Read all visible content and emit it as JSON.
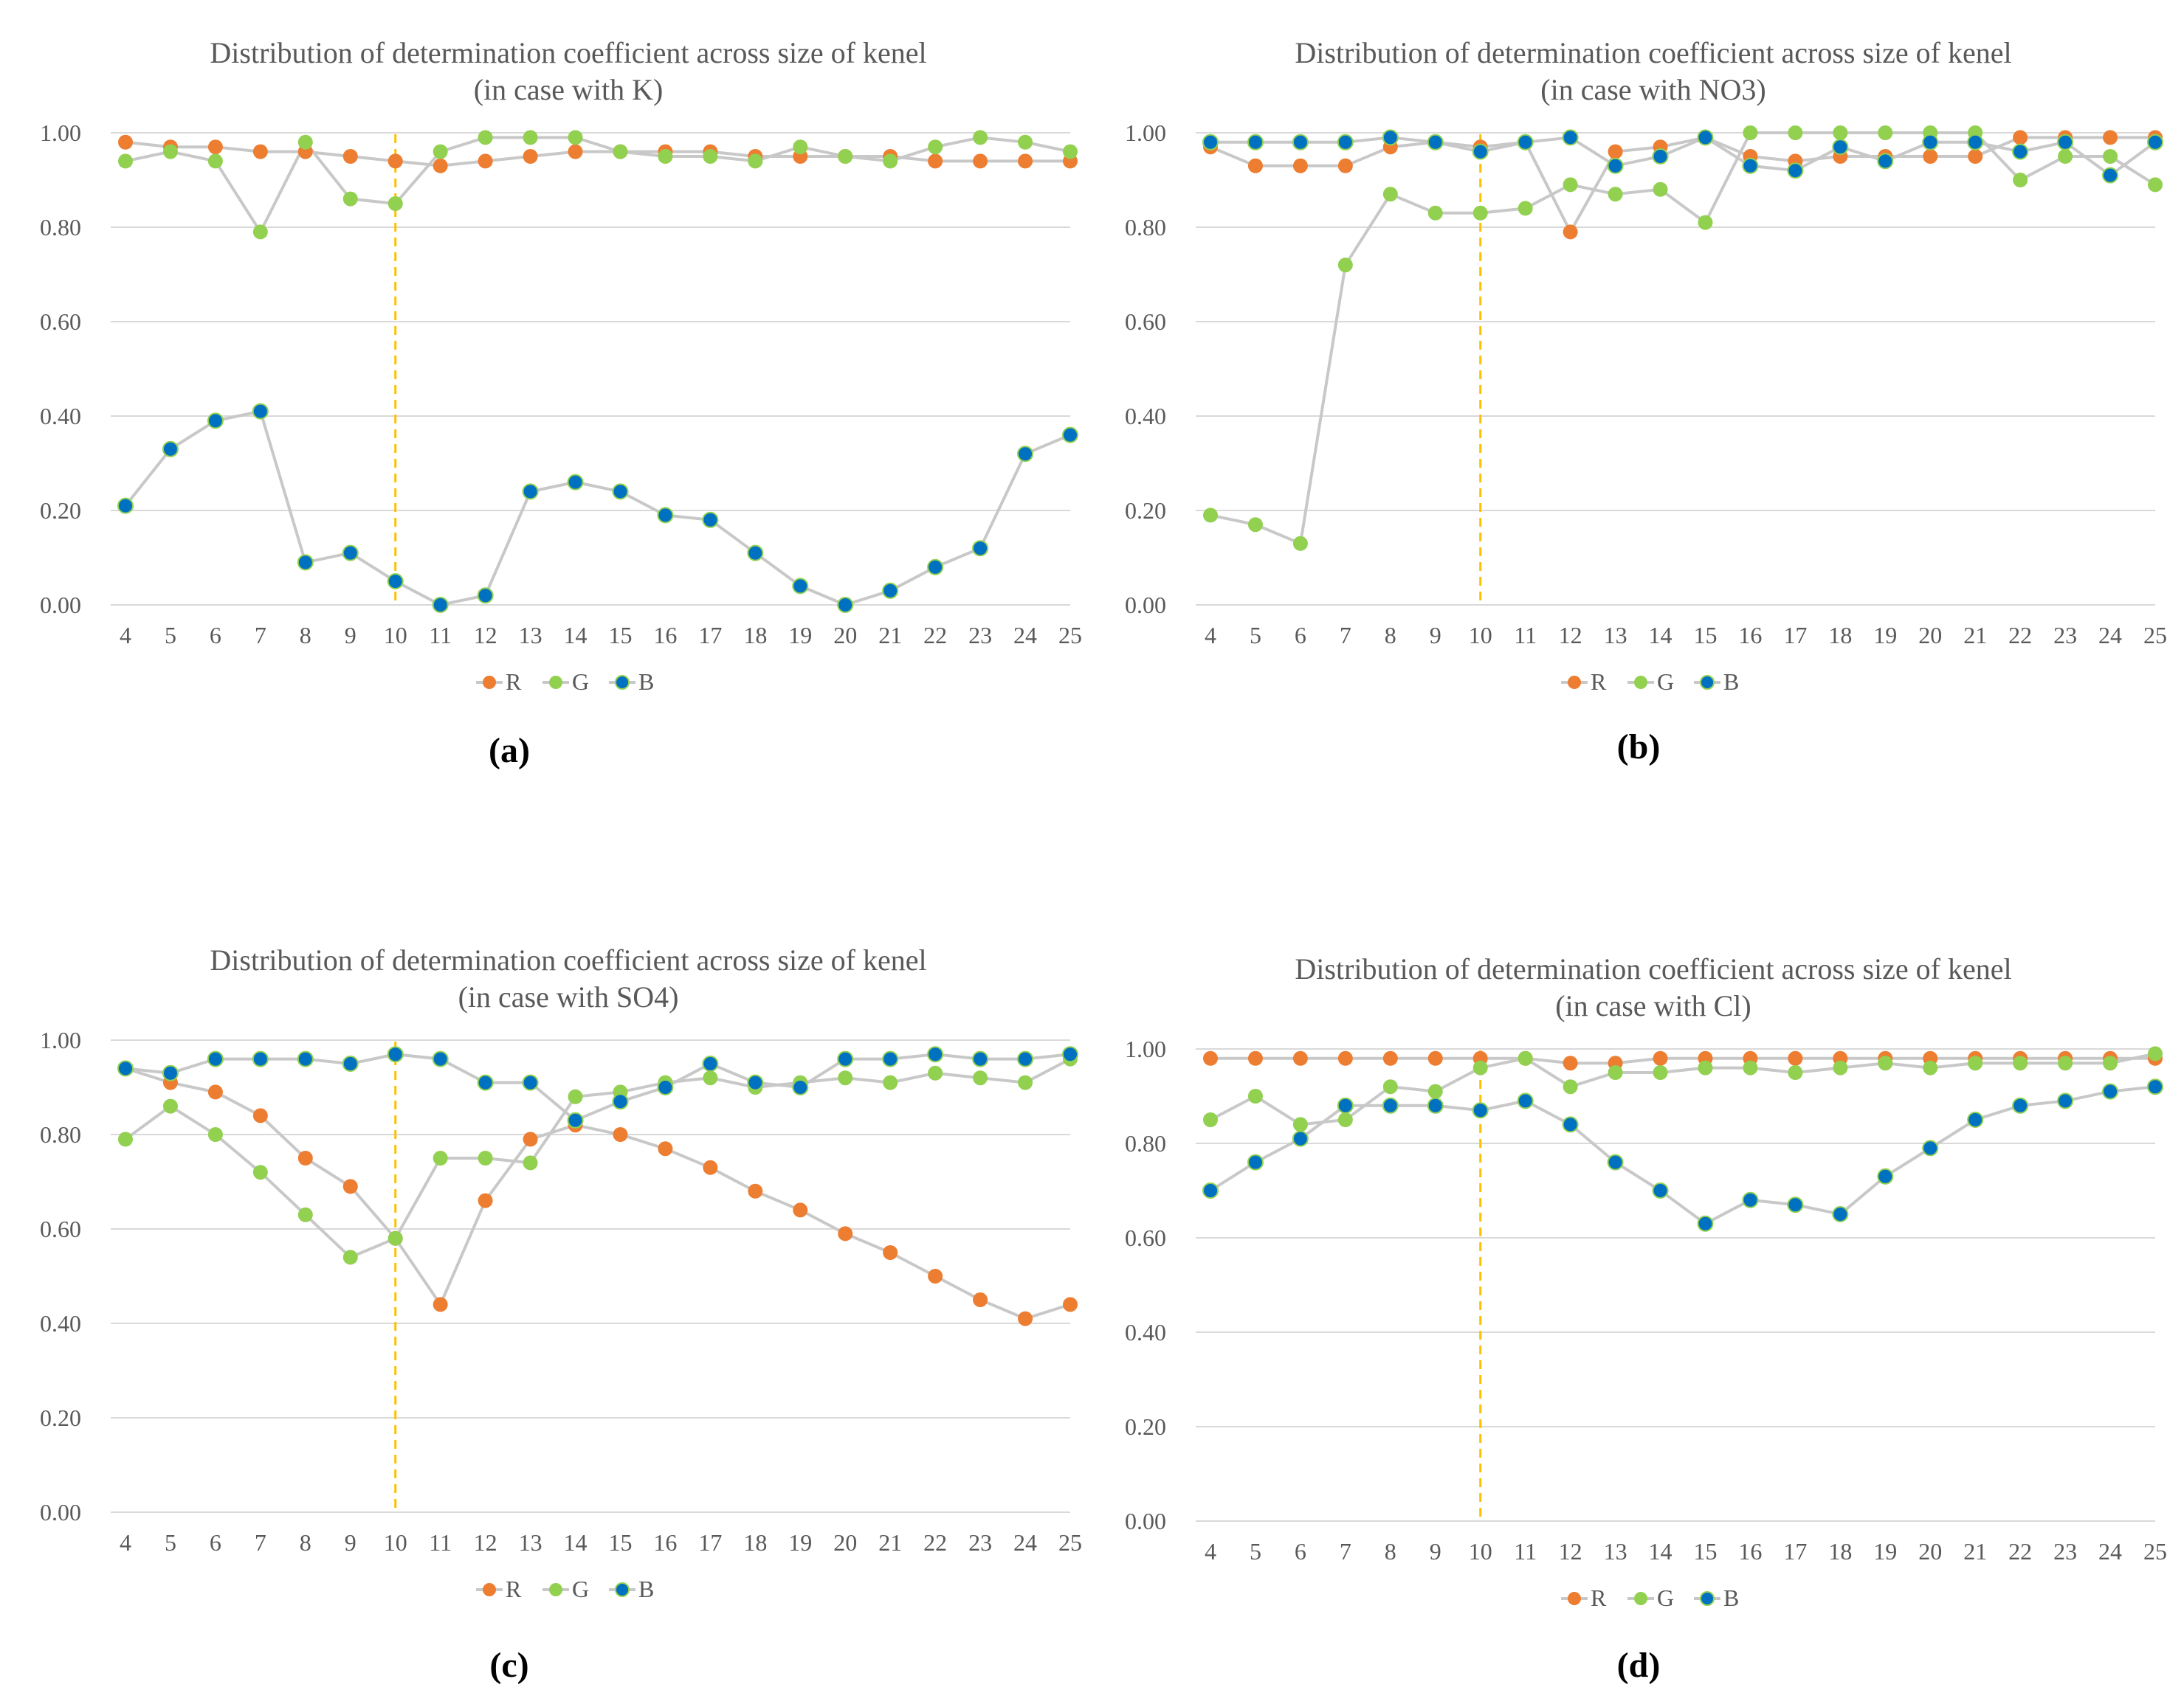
{
  "colors": {
    "R": "#ED7D31",
    "G": "#92D050",
    "B": "#0070C0",
    "line": "#C8C8C8",
    "grid": "#D9D9D9",
    "marker_line": "#FFC000"
  },
  "chart_data": [
    {
      "type": "line",
      "id": "a",
      "panel_label": "(a)",
      "title": "Distribution of determination coefficient across size of kenel",
      "subtitle": "(in case with K)",
      "xlabel": "",
      "ylabel": "",
      "categories": [
        "4",
        "5",
        "6",
        "7",
        "8",
        "9",
        "10",
        "11",
        "12",
        "13",
        "14",
        "15",
        "16",
        "17",
        "18",
        "19",
        "20",
        "21",
        "22",
        "23",
        "24",
        "25"
      ],
      "ylim": [
        0,
        1
      ],
      "yticks": [
        "0.00",
        "0.20",
        "0.40",
        "0.60",
        "0.80",
        "1.00"
      ],
      "reference_x": "10",
      "legend": [
        "R",
        "G",
        "B"
      ],
      "series": [
        {
          "name": "R",
          "values": [
            0.98,
            0.97,
            0.97,
            0.96,
            0.96,
            0.95,
            0.94,
            0.93,
            0.94,
            0.95,
            0.96,
            0.96,
            0.96,
            0.96,
            0.95,
            0.95,
            0.95,
            0.95,
            0.94,
            0.94,
            0.94,
            0.94
          ]
        },
        {
          "name": "G",
          "values": [
            0.94,
            0.96,
            0.94,
            0.79,
            0.98,
            0.86,
            0.85,
            0.96,
            0.99,
            0.99,
            0.99,
            0.96,
            0.95,
            0.95,
            0.94,
            0.97,
            0.95,
            0.94,
            0.97,
            0.99,
            0.98,
            0.96
          ]
        },
        {
          "name": "B",
          "values": [
            0.21,
            0.33,
            0.39,
            0.41,
            0.09,
            0.11,
            0.05,
            0.0,
            0.02,
            0.24,
            0.26,
            0.24,
            0.19,
            0.18,
            0.11,
            0.04,
            0.0,
            0.03,
            0.08,
            0.12,
            0.32,
            0.36
          ]
        }
      ]
    },
    {
      "type": "line",
      "id": "b",
      "panel_label": "(b)",
      "title": "Distribution of determination coefficient across size of kenel",
      "subtitle": "(in case with NO3)",
      "xlabel": "",
      "ylabel": "",
      "categories": [
        "4",
        "5",
        "6",
        "7",
        "8",
        "9",
        "10",
        "11",
        "12",
        "13",
        "14",
        "15",
        "16",
        "17",
        "18",
        "19",
        "20",
        "21",
        "22",
        "23",
        "24",
        "25"
      ],
      "ylim": [
        0,
        1
      ],
      "yticks": [
        "0.00",
        "0.20",
        "0.40",
        "0.60",
        "0.80",
        "1.00"
      ],
      "reference_x": "10",
      "legend": [
        "R",
        "G",
        "B"
      ],
      "series": [
        {
          "name": "R",
          "values": [
            0.97,
            0.93,
            0.93,
            0.93,
            0.97,
            0.98,
            0.97,
            0.98,
            0.79,
            0.96,
            0.97,
            0.99,
            0.95,
            0.94,
            0.95,
            0.95,
            0.95,
            0.95,
            0.99,
            0.99,
            0.99,
            0.99
          ]
        },
        {
          "name": "G",
          "values": [
            0.19,
            0.17,
            0.13,
            0.72,
            0.87,
            0.83,
            0.83,
            0.84,
            0.89,
            0.87,
            0.88,
            0.81,
            1.0,
            1.0,
            1.0,
            1.0,
            1.0,
            1.0,
            0.9,
            0.95,
            0.95,
            0.89
          ]
        },
        {
          "name": "B",
          "values": [
            0.98,
            0.98,
            0.98,
            0.98,
            0.99,
            0.98,
            0.96,
            0.98,
            0.99,
            0.93,
            0.95,
            0.99,
            0.93,
            0.92,
            0.97,
            0.94,
            0.98,
            0.98,
            0.96,
            0.98,
            0.91,
            0.98
          ]
        }
      ]
    },
    {
      "type": "line",
      "id": "c",
      "panel_label": "(c)",
      "title": "Distribution of determination coefficient across size of kenel",
      "subtitle": "(in case with SO4)",
      "xlabel": "",
      "ylabel": "",
      "categories": [
        "4",
        "5",
        "6",
        "7",
        "8",
        "9",
        "10",
        "11",
        "12",
        "13",
        "14",
        "15",
        "16",
        "17",
        "18",
        "19",
        "20",
        "21",
        "22",
        "23",
        "24",
        "25"
      ],
      "ylim": [
        0,
        1
      ],
      "yticks": [
        "0.00",
        "0.20",
        "0.40",
        "0.60",
        "0.80",
        "1.00"
      ],
      "reference_x": "10",
      "legend": [
        "R",
        "G",
        "B"
      ],
      "series": [
        {
          "name": "R",
          "values": [
            0.94,
            0.91,
            0.89,
            0.84,
            0.75,
            0.69,
            0.58,
            0.44,
            0.66,
            0.79,
            0.82,
            0.8,
            0.77,
            0.73,
            0.68,
            0.64,
            0.59,
            0.55,
            0.5,
            0.45,
            0.41,
            0.44
          ]
        },
        {
          "name": "G",
          "values": [
            0.79,
            0.86,
            0.8,
            0.72,
            0.63,
            0.54,
            0.58,
            0.75,
            0.75,
            0.74,
            0.88,
            0.89,
            0.91,
            0.92,
            0.9,
            0.91,
            0.92,
            0.91,
            0.93,
            0.92,
            0.91,
            0.96
          ]
        },
        {
          "name": "B",
          "values": [
            0.94,
            0.93,
            0.96,
            0.96,
            0.96,
            0.95,
            0.97,
            0.96,
            0.91,
            0.91,
            0.83,
            0.87,
            0.9,
            0.95,
            0.91,
            0.9,
            0.96,
            0.96,
            0.97,
            0.96,
            0.96,
            0.97
          ]
        }
      ]
    },
    {
      "type": "line",
      "id": "d",
      "panel_label": "(d)",
      "title": "Distribution of determination coefficient across size of kenel",
      "subtitle": "(in case with Cl)",
      "xlabel": "",
      "ylabel": "",
      "categories": [
        "4",
        "5",
        "6",
        "7",
        "8",
        "9",
        "10",
        "11",
        "12",
        "13",
        "14",
        "15",
        "16",
        "17",
        "18",
        "19",
        "20",
        "21",
        "22",
        "23",
        "24",
        "25"
      ],
      "ylim": [
        0,
        1
      ],
      "yticks": [
        "0.00",
        "0.20",
        "0.40",
        "0.60",
        "0.80",
        "1.00"
      ],
      "reference_x": "10",
      "legend": [
        "R",
        "G",
        "B"
      ],
      "series": [
        {
          "name": "R",
          "values": [
            0.98,
            0.98,
            0.98,
            0.98,
            0.98,
            0.98,
            0.98,
            0.98,
            0.97,
            0.97,
            0.98,
            0.98,
            0.98,
            0.98,
            0.98,
            0.98,
            0.98,
            0.98,
            0.98,
            0.98,
            0.98,
            0.98
          ]
        },
        {
          "name": "G",
          "values": [
            0.85,
            0.9,
            0.84,
            0.85,
            0.92,
            0.91,
            0.96,
            0.98,
            0.92,
            0.95,
            0.95,
            0.96,
            0.96,
            0.95,
            0.96,
            0.97,
            0.96,
            0.97,
            0.97,
            0.97,
            0.97,
            0.99
          ]
        },
        {
          "name": "B",
          "values": [
            0.7,
            0.76,
            0.81,
            0.88,
            0.88,
            0.88,
            0.87,
            0.89,
            0.84,
            0.76,
            0.7,
            0.63,
            0.68,
            0.67,
            0.65,
            0.73,
            0.79,
            0.85,
            0.88,
            0.89,
            0.91,
            0.92
          ]
        }
      ]
    }
  ]
}
